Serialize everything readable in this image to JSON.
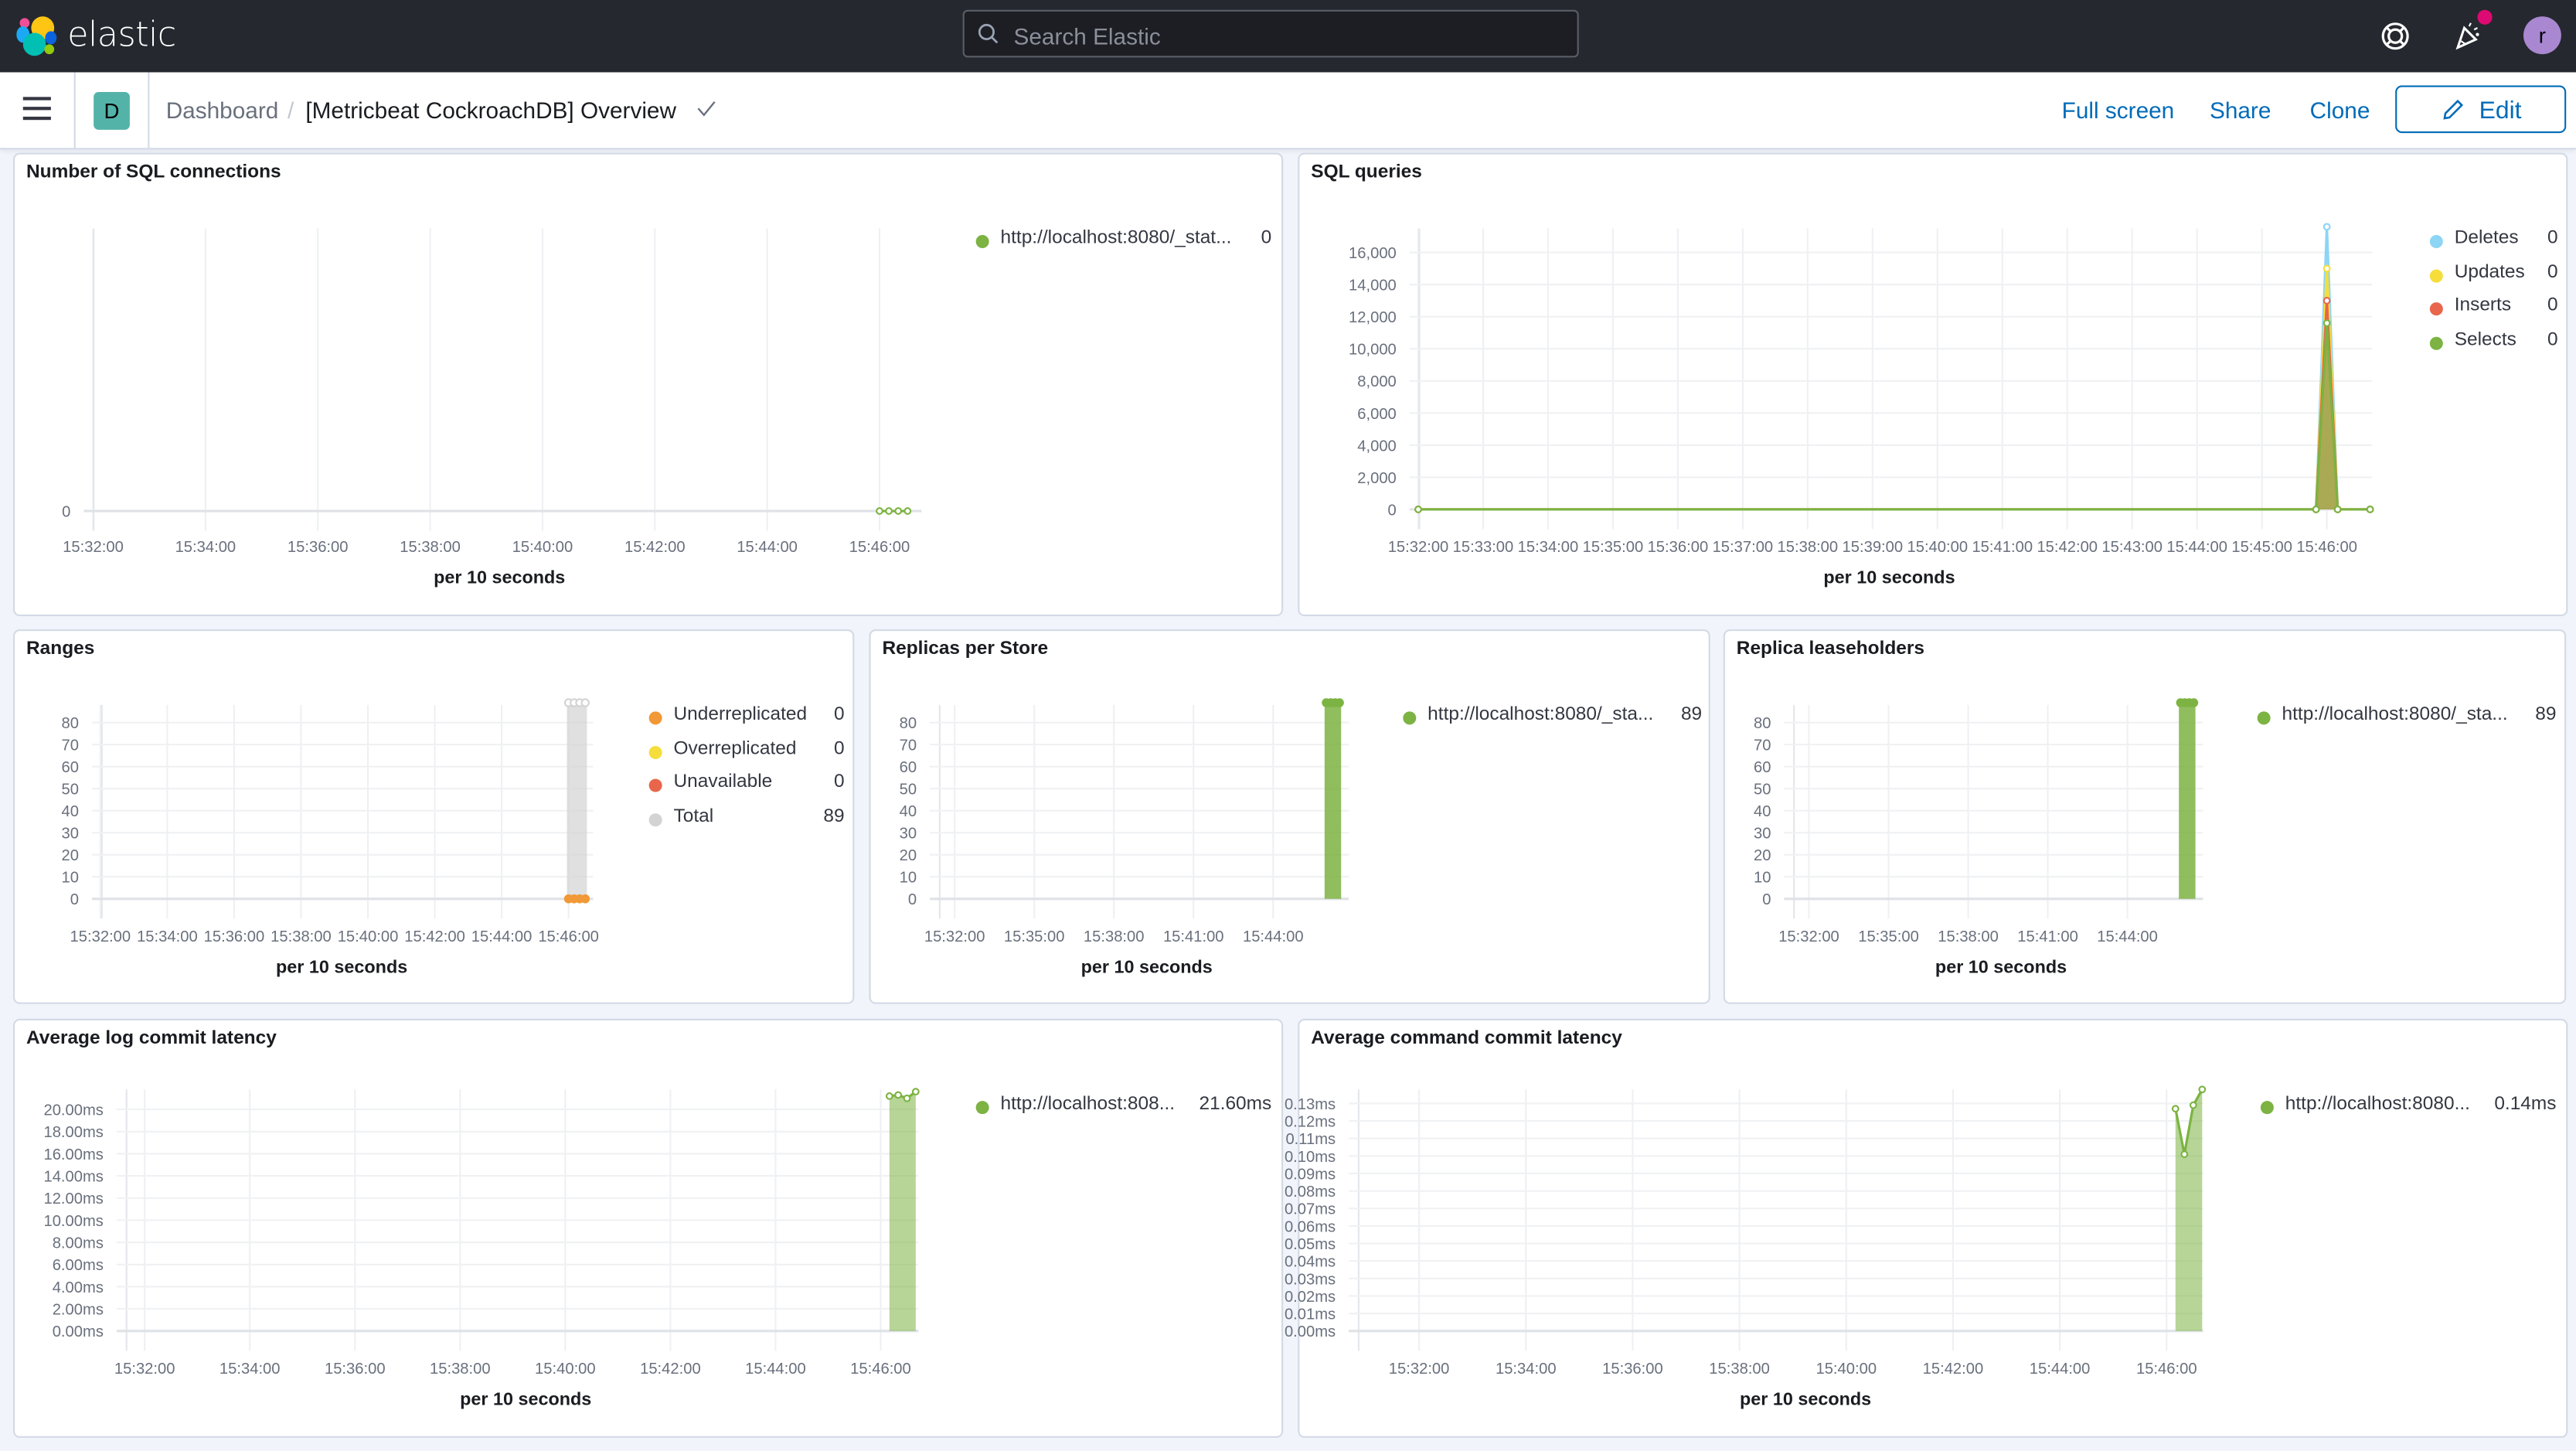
{
  "header": {
    "brand": "elastic",
    "search_placeholder": "Search Elastic",
    "avatar_initial": "r",
    "icons": [
      "elastic-logo-icon",
      "search-icon",
      "help-icon",
      "newsfeed-icon",
      "user-avatar"
    ]
  },
  "subheader": {
    "space_badge": "D",
    "breadcrumb_root": "Dashboard",
    "breadcrumb_sep": "/",
    "breadcrumb_current": "[Metricbeat CockroachDB] Overview",
    "full_screen": "Full screen",
    "share": "Share",
    "clone": "Clone",
    "edit": "Edit"
  },
  "colors": {
    "accent": "#006bb8",
    "green": "#7cb342",
    "blue": "#8cd5f5",
    "yellow": "#f5de3b",
    "red": "#e7664c",
    "orange": "#f19837",
    "grey": "#d3d3d3"
  },
  "chart_data": [
    {
      "title": "Number of SQL connections",
      "type": "area",
      "xlabel": "per 10 seconds",
      "xlim": [
        "15:31:50",
        "15:46:45"
      ],
      "x_ticks": [
        "15:32:00",
        "15:34:00",
        "15:36:00",
        "15:38:00",
        "15:40:00",
        "15:42:00",
        "15:44:00",
        "15:46:00"
      ],
      "ylim": [
        0,
        1
      ],
      "y_ticks": [
        0
      ],
      "y_tick_labels": [
        "0"
      ],
      "series": [
        {
          "name": "http://localhost:8080/_stat...",
          "legend_value": "0",
          "color": "#7cb342",
          "points": [
            [
              "15:46:00",
              0
            ],
            [
              "15:46:10",
              0
            ],
            [
              "15:46:20",
              0
            ],
            [
              "15:46:30",
              0
            ]
          ]
        }
      ]
    },
    {
      "title": "SQL queries",
      "type": "area",
      "xlabel": "per 10 seconds",
      "xlim": [
        "15:31:52",
        "15:46:42"
      ],
      "x_ticks": [
        "15:32:00",
        "15:33:00",
        "15:34:00",
        "15:35:00",
        "15:36:00",
        "15:37:00",
        "15:38:00",
        "15:39:00",
        "15:40:00",
        "15:41:00",
        "15:42:00",
        "15:43:00",
        "15:44:00",
        "15:45:00",
        "15:46:00"
      ],
      "ylim": [
        0,
        17500
      ],
      "y_ticks": [
        0,
        2000,
        4000,
        6000,
        8000,
        10000,
        12000,
        14000,
        16000
      ],
      "y_tick_labels": [
        "0",
        "2,000",
        "4,000",
        "6,000",
        "8,000",
        "10,000",
        "12,000",
        "14,000",
        "16,000"
      ],
      "series": [
        {
          "name": "Deletes",
          "legend_value": "0",
          "color": "#8cd5f5",
          "points": [
            [
              "15:32:00",
              0
            ],
            [
              "15:45:50",
              0
            ],
            [
              "15:46:00",
              17600
            ],
            [
              "15:46:10",
              0
            ],
            [
              "15:46:40",
              0
            ]
          ]
        },
        {
          "name": "Updates",
          "legend_value": "0",
          "color": "#f5de3b",
          "points": [
            [
              "15:32:00",
              0
            ],
            [
              "15:45:50",
              0
            ],
            [
              "15:46:00",
              15000
            ],
            [
              "15:46:10",
              0
            ],
            [
              "15:46:40",
              0
            ]
          ]
        },
        {
          "name": "Inserts",
          "legend_value": "0",
          "color": "#e7664c",
          "points": [
            [
              "15:32:00",
              0
            ],
            [
              "15:45:50",
              0
            ],
            [
              "15:46:00",
              13000
            ],
            [
              "15:46:10",
              0
            ],
            [
              "15:46:40",
              0
            ]
          ]
        },
        {
          "name": "Selects",
          "legend_value": "0",
          "color": "#7cb342",
          "points": [
            [
              "15:32:00",
              0
            ],
            [
              "15:45:50",
              0
            ],
            [
              "15:46:00",
              11600
            ],
            [
              "15:46:10",
              0
            ],
            [
              "15:46:40",
              0
            ]
          ]
        }
      ]
    },
    {
      "title": "Ranges",
      "type": "bar",
      "xlabel": "per 10 seconds",
      "xlim": [
        "15:31:45",
        "15:46:44"
      ],
      "x_ticks": [
        "15:32:00",
        "15:34:00",
        "15:36:00",
        "15:38:00",
        "15:40:00",
        "15:42:00",
        "15:44:00",
        "15:46:00"
      ],
      "ylim": [
        0,
        88
      ],
      "y_ticks": [
        0,
        10,
        20,
        30,
        40,
        50,
        60,
        70,
        80
      ],
      "y_tick_labels": [
        "0",
        "10",
        "20",
        "30",
        "40",
        "50",
        "60",
        "70",
        "80"
      ],
      "series": [
        {
          "name": "Underreplicated",
          "legend_value": "0",
          "color": "#f19837",
          "points": [
            [
              "15:46:00",
              0
            ],
            [
              "15:46:10",
              0
            ],
            [
              "15:46:20",
              0
            ],
            [
              "15:46:30",
              0
            ]
          ]
        },
        {
          "name": "Overreplicated",
          "legend_value": "0",
          "color": "#f5de3b",
          "points": [
            [
              "15:46:00",
              0
            ],
            [
              "15:46:10",
              0
            ],
            [
              "15:46:20",
              0
            ],
            [
              "15:46:30",
              0
            ]
          ]
        },
        {
          "name": "Unavailable",
          "legend_value": "0",
          "color": "#e7664c",
          "points": [
            [
              "15:46:00",
              0
            ],
            [
              "15:46:10",
              0
            ],
            [
              "15:46:20",
              0
            ],
            [
              "15:46:30",
              0
            ]
          ]
        },
        {
          "name": "Total",
          "legend_value": "89",
          "color": "#d3d3d3",
          "points": [
            [
              "15:46:00",
              89
            ],
            [
              "15:46:10",
              89
            ],
            [
              "15:46:20",
              89
            ],
            [
              "15:46:30",
              89
            ]
          ]
        }
      ]
    },
    {
      "title": "Replicas per Store",
      "type": "bar",
      "xlabel": "per 10 seconds",
      "xlim": [
        "15:31:04",
        "15:46:51"
      ],
      "x_ticks": [
        "15:32:00",
        "15:35:00",
        "15:38:00",
        "15:41:00",
        "15:44:00"
      ],
      "ylim": [
        0,
        88
      ],
      "y_ticks": [
        0,
        10,
        20,
        30,
        40,
        50,
        60,
        70,
        80
      ],
      "y_tick_labels": [
        "0",
        "10",
        "20",
        "30",
        "40",
        "50",
        "60",
        "70",
        "80"
      ],
      "series": [
        {
          "name": "http://localhost:8080/_sta...",
          "legend_value": "89",
          "color": "#7cb342",
          "points": [
            [
              "15:46:00",
              89
            ],
            [
              "15:46:10",
              89
            ],
            [
              "15:46:20",
              89
            ],
            [
              "15:46:30",
              89
            ]
          ]
        }
      ]
    },
    {
      "title": "Replica leaseholders",
      "type": "bar",
      "xlabel": "per 10 seconds",
      "xlim": [
        "15:31:04",
        "15:46:51"
      ],
      "x_ticks": [
        "15:32:00",
        "15:35:00",
        "15:38:00",
        "15:41:00",
        "15:44:00"
      ],
      "ylim": [
        0,
        88
      ],
      "y_ticks": [
        0,
        10,
        20,
        30,
        40,
        50,
        60,
        70,
        80
      ],
      "y_tick_labels": [
        "0",
        "10",
        "20",
        "30",
        "40",
        "50",
        "60",
        "70",
        "80"
      ],
      "series": [
        {
          "name": "http://localhost:8080/_sta...",
          "legend_value": "89",
          "color": "#7cb342",
          "points": [
            [
              "15:46:00",
              89
            ],
            [
              "15:46:10",
              89
            ],
            [
              "15:46:20",
              89
            ],
            [
              "15:46:30",
              89
            ]
          ]
        }
      ]
    },
    {
      "title": "Average log commit latency",
      "type": "area",
      "xlabel": "per 10 seconds",
      "xlim": [
        "15:31:28",
        "15:46:43"
      ],
      "x_ticks": [
        "15:32:00",
        "15:34:00",
        "15:36:00",
        "15:38:00",
        "15:40:00",
        "15:42:00",
        "15:44:00",
        "15:46:00"
      ],
      "ylim": [
        0,
        21.8
      ],
      "y_ticks": [
        0,
        2,
        4,
        6,
        8,
        10,
        12,
        14,
        16,
        18,
        20
      ],
      "y_tick_labels": [
        "0.00ms",
        "2.00ms",
        "4.00ms",
        "6.00ms",
        "8.00ms",
        "10.00ms",
        "12.00ms",
        "14.00ms",
        "16.00ms",
        "18.00ms",
        "20.00ms"
      ],
      "series": [
        {
          "name": "http://localhost:808...",
          "legend_value": "21.60ms",
          "color": "#7cb342",
          "points": [
            [
              "15:46:10",
              21.2
            ],
            [
              "15:46:20",
              21.3
            ],
            [
              "15:46:30",
              21.0
            ],
            [
              "15:46:40",
              21.6
            ]
          ]
        }
      ]
    },
    {
      "title": "Average command commit latency",
      "type": "area",
      "xlabel": "per 10 seconds",
      "xlim": [
        "15:30:41",
        "15:46:41"
      ],
      "x_ticks": [
        "15:32:00",
        "15:34:00",
        "15:36:00",
        "15:38:00",
        "15:40:00",
        "15:42:00",
        "15:44:00",
        "15:46:00"
      ],
      "ylim": [
        0,
        0.138
      ],
      "y_ticks": [
        0,
        0.01,
        0.02,
        0.03,
        0.04,
        0.05,
        0.06,
        0.07,
        0.08,
        0.09,
        0.1,
        0.11,
        0.12,
        0.13
      ],
      "y_tick_labels": [
        "0.00ms",
        "0.01ms",
        "0.02ms",
        "0.03ms",
        "0.04ms",
        "0.05ms",
        "0.06ms",
        "0.07ms",
        "0.08ms",
        "0.09ms",
        "0.10ms",
        "0.11ms",
        "0.12ms",
        "0.13ms"
      ],
      "series": [
        {
          "name": "http://localhost:8080...",
          "legend_value": "0.14ms",
          "color": "#7cb342",
          "points": [
            [
              "15:46:10",
              0.127
            ],
            [
              "15:46:20",
              0.101
            ],
            [
              "15:46:30",
              0.129
            ],
            [
              "15:46:40",
              0.138
            ]
          ]
        }
      ]
    }
  ]
}
